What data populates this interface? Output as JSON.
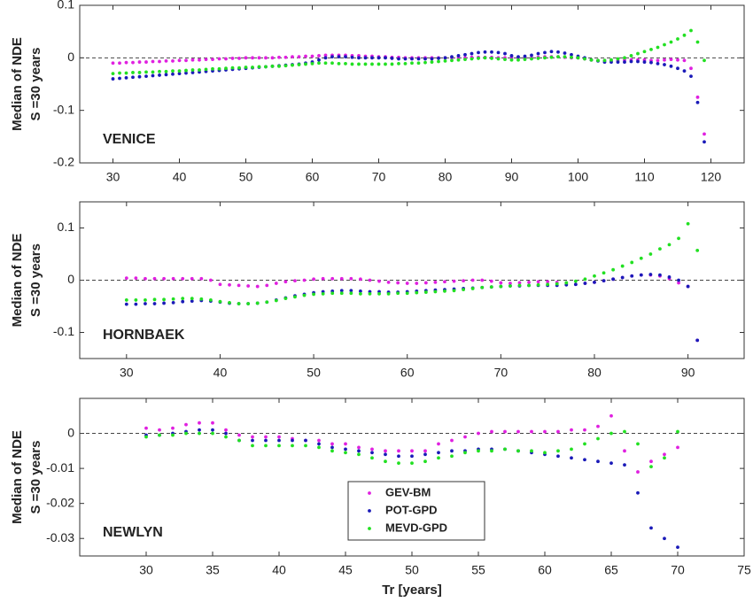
{
  "chart_data": [
    {
      "type": "scatter",
      "ylabel": [
        "Median of NDE",
        "S =30 years"
      ],
      "annotation": "VENICE",
      "hline": 0,
      "xlim": [
        25,
        125
      ],
      "xticks": [
        30,
        40,
        50,
        60,
        70,
        80,
        90,
        100,
        110,
        120
      ],
      "ylim": [
        -0.2,
        0.1
      ],
      "yticks": [
        -0.2,
        -0.1,
        0,
        0.1
      ],
      "x": [
        30,
        31,
        32,
        33,
        34,
        35,
        36,
        37,
        38,
        39,
        40,
        41,
        42,
        43,
        44,
        45,
        46,
        47,
        48,
        49,
        50,
        51,
        52,
        53,
        54,
        55,
        56,
        57,
        58,
        59,
        60,
        61,
        62,
        63,
        64,
        65,
        66,
        67,
        68,
        69,
        70,
        71,
        72,
        73,
        74,
        75,
        76,
        77,
        78,
        79,
        80,
        81,
        82,
        83,
        84,
        85,
        86,
        87,
        88,
        89,
        90,
        91,
        92,
        93,
        94,
        95,
        96,
        97,
        98,
        99,
        100,
        101,
        102,
        103,
        104,
        105,
        106,
        107,
        108,
        109,
        110,
        111,
        112,
        113,
        114,
        115,
        116,
        117,
        118,
        119
      ],
      "series": [
        {
          "color": "#e020e0",
          "values": [
            -0.01,
            -0.01,
            -0.009,
            -0.009,
            -0.008,
            -0.008,
            -0.007,
            -0.007,
            -0.006,
            -0.006,
            -0.005,
            -0.005,
            -0.004,
            -0.004,
            -0.003,
            -0.003,
            -0.002,
            -0.002,
            -0.001,
            -0.001,
            0,
            0,
            0,
            0,
            0,
            0.001,
            0.001,
            0.002,
            0.002,
            0.003,
            0.003,
            0.004,
            0.005,
            0.005,
            0.005,
            0.005,
            0.004,
            0.004,
            0.003,
            0.003,
            0.002,
            0.002,
            0.001,
            0.001,
            0,
            0,
            0,
            0,
            0,
            0,
            0,
            0,
            0,
            0,
            0.001,
            0.001,
            0.001,
            0.001,
            0,
            0,
            0,
            0,
            0,
            0,
            0.001,
            0.002,
            0.002,
            0.002,
            0.001,
            0,
            0,
            -0.002,
            -0.004,
            -0.005,
            -0.005,
            -0.005,
            -0.005,
            -0.004,
            -0.004,
            -0.004,
            -0.004,
            -0.005,
            -0.005,
            -0.004,
            -0.003,
            -0.004,
            -0.005,
            -0.02,
            -0.075,
            -0.145
          ]
        },
        {
          "color": "#1a1ab8",
          "values": [
            -0.04,
            -0.039,
            -0.038,
            -0.037,
            -0.036,
            -0.035,
            -0.034,
            -0.033,
            -0.032,
            -0.031,
            -0.03,
            -0.029,
            -0.028,
            -0.027,
            -0.026,
            -0.025,
            -0.024,
            -0.023,
            -0.022,
            -0.021,
            -0.02,
            -0.019,
            -0.018,
            -0.017,
            -0.016,
            -0.015,
            -0.014,
            -0.013,
            -0.012,
            -0.01,
            -0.008,
            -0.004,
            0,
            0.002,
            0.002,
            0.002,
            0.001,
            0,
            0,
            0,
            0,
            0,
            -0.001,
            -0.002,
            -0.002,
            -0.002,
            -0.002,
            -0.002,
            -0.002,
            -0.001,
            0,
            0.002,
            0.004,
            0.006,
            0.008,
            0.01,
            0.011,
            0.011,
            0.01,
            0.008,
            0.004,
            0.002,
            0.003,
            0.005,
            0.008,
            0.01,
            0.012,
            0.011,
            0.009,
            0.006,
            0.003,
            0,
            -0.004,
            -0.006,
            -0.008,
            -0.008,
            -0.008,
            -0.008,
            -0.007,
            -0.007,
            -0.008,
            -0.009,
            -0.011,
            -0.013,
            -0.016,
            -0.02,
            -0.025,
            -0.035,
            -0.085,
            -0.16
          ]
        },
        {
          "color": "#22e022",
          "values": [
            -0.03,
            -0.029,
            -0.029,
            -0.028,
            -0.028,
            -0.027,
            -0.027,
            -0.026,
            -0.026,
            -0.025,
            -0.025,
            -0.024,
            -0.023,
            -0.023,
            -0.022,
            -0.021,
            -0.021,
            -0.02,
            -0.019,
            -0.019,
            -0.018,
            -0.018,
            -0.017,
            -0.017,
            -0.016,
            -0.016,
            -0.015,
            -0.014,
            -0.013,
            -0.012,
            -0.011,
            -0.01,
            -0.01,
            -0.01,
            -0.011,
            -0.011,
            -0.012,
            -0.012,
            -0.012,
            -0.012,
            -0.012,
            -0.012,
            -0.012,
            -0.011,
            -0.011,
            -0.01,
            -0.01,
            -0.009,
            -0.008,
            -0.007,
            -0.006,
            -0.005,
            -0.004,
            -0.003,
            -0.002,
            -0.001,
            0,
            -0.001,
            -0.002,
            -0.003,
            -0.004,
            -0.004,
            -0.003,
            -0.002,
            -0.001,
            0,
            0.001,
            0.002,
            0.002,
            0.001,
            0,
            -0.002,
            -0.004,
            -0.005,
            -0.005,
            -0.004,
            -0.002,
            0,
            0.004,
            0.008,
            0.012,
            0.016,
            0.02,
            0.025,
            0.03,
            0.036,
            0.043,
            0.052,
            0.03,
            -0.005
          ]
        }
      ]
    },
    {
      "type": "scatter",
      "ylabel": [
        "Median of NDE",
        "S =30 years"
      ],
      "annotation": "HORNBAEK",
      "hline": 0,
      "xlim": [
        25,
        96
      ],
      "xticks": [
        30,
        40,
        50,
        60,
        70,
        80,
        90
      ],
      "ylim": [
        -0.15,
        0.15
      ],
      "yticks": [
        -0.1,
        0,
        0.1
      ],
      "x": [
        30,
        31,
        32,
        33,
        34,
        35,
        36,
        37,
        38,
        39,
        40,
        41,
        42,
        43,
        44,
        45,
        46,
        47,
        48,
        49,
        50,
        51,
        52,
        53,
        54,
        55,
        56,
        57,
        58,
        59,
        60,
        61,
        62,
        63,
        64,
        65,
        66,
        67,
        68,
        69,
        70,
        71,
        72,
        73,
        74,
        75,
        76,
        77,
        78,
        79,
        80,
        81,
        82,
        83,
        84,
        85,
        86,
        87,
        88,
        89,
        90,
        91
      ],
      "series": [
        {
          "color": "#e020e0",
          "values": [
            0.004,
            0.004,
            0.003,
            0.003,
            0.003,
            0.003,
            0.003,
            0.003,
            0.003,
            0,
            -0.008,
            -0.009,
            -0.01,
            -0.011,
            -0.012,
            -0.01,
            -0.006,
            -0.003,
            -0.001,
            0,
            0.002,
            0.003,
            0.003,
            0.003,
            0.003,
            0.002,
            0,
            -0.002,
            -0.004,
            -0.005,
            -0.006,
            -0.006,
            -0.005,
            -0.004,
            -0.003,
            -0.002,
            -0.001,
            0,
            0,
            -0.002,
            -0.005,
            -0.006,
            -0.005,
            -0.004,
            -0.003,
            -0.003,
            -0.004,
            -0.006,
            -0.008,
            -0.006,
            -0.004,
            -0.001,
            0.002,
            0.005,
            0.008,
            0.01,
            0.01,
            0.008,
            0.003,
            -0.005,
            -0.012,
            -0.115
          ]
        },
        {
          "color": "#1a1ab8",
          "values": [
            -0.046,
            -0.046,
            -0.045,
            -0.045,
            -0.044,
            -0.043,
            -0.041,
            -0.04,
            -0.039,
            -0.04,
            -0.042,
            -0.044,
            -0.045,
            -0.045,
            -0.044,
            -0.042,
            -0.038,
            -0.034,
            -0.03,
            -0.027,
            -0.024,
            -0.022,
            -0.021,
            -0.02,
            -0.02,
            -0.021,
            -0.022,
            -0.022,
            -0.023,
            -0.023,
            -0.022,
            -0.021,
            -0.02,
            -0.019,
            -0.018,
            -0.017,
            -0.016,
            -0.015,
            -0.014,
            -0.013,
            -0.012,
            -0.011,
            -0.011,
            -0.01,
            -0.01,
            -0.01,
            -0.01,
            -0.009,
            -0.008,
            -0.006,
            -0.004,
            -0.001,
            0.002,
            0.005,
            0.008,
            0.01,
            0.011,
            0.01,
            0.006,
            0,
            -0.012,
            -0.115
          ]
        },
        {
          "color": "#22e022",
          "values": [
            -0.038,
            -0.038,
            -0.038,
            -0.037,
            -0.037,
            -0.036,
            -0.035,
            -0.035,
            -0.036,
            -0.038,
            -0.041,
            -0.043,
            -0.045,
            -0.045,
            -0.044,
            -0.042,
            -0.039,
            -0.035,
            -0.032,
            -0.029,
            -0.027,
            -0.026,
            -0.025,
            -0.025,
            -0.025,
            -0.026,
            -0.026,
            -0.026,
            -0.026,
            -0.025,
            -0.025,
            -0.024,
            -0.023,
            -0.022,
            -0.021,
            -0.02,
            -0.018,
            -0.016,
            -0.014,
            -0.013,
            -0.012,
            -0.011,
            -0.01,
            -0.01,
            -0.009,
            -0.008,
            -0.007,
            -0.005,
            -0.002,
            0.002,
            0.008,
            0.014,
            0.02,
            0.027,
            0.034,
            0.042,
            0.05,
            0.06,
            0.068,
            0.08,
            0.108,
            0.057
          ]
        }
      ]
    },
    {
      "type": "scatter",
      "ylabel": [
        "Median of NDE",
        "S =30 years"
      ],
      "annotation": "NEWLYN",
      "hline": 0,
      "xlabel": "Tr [years]",
      "legend": "lower center",
      "xlim": [
        25,
        75
      ],
      "xticks": [
        30,
        35,
        40,
        45,
        50,
        55,
        60,
        65,
        70,
        75
      ],
      "ylim": [
        -0.035,
        0.01
      ],
      "yticks": [
        -0.03,
        -0.02,
        -0.01,
        0
      ],
      "x": [
        30,
        31,
        32,
        33,
        34,
        35,
        36,
        37,
        38,
        39,
        40,
        41,
        42,
        43,
        44,
        45,
        46,
        47,
        48,
        49,
        50,
        51,
        52,
        53,
        54,
        55,
        56,
        57,
        58,
        59,
        60,
        61,
        62,
        63,
        64,
        65,
        66,
        67,
        68,
        69,
        70
      ],
      "series": [
        {
          "name": "GEV-BM",
          "color": "#e020e0",
          "values": [
            0.0015,
            0.001,
            0.0015,
            0.0025,
            0.003,
            0.003,
            0.001,
            -0.0005,
            -0.001,
            -0.001,
            -0.001,
            -0.0015,
            -0.002,
            -0.002,
            -0.003,
            -0.003,
            -0.004,
            -0.0045,
            -0.005,
            -0.005,
            -0.005,
            -0.005,
            -0.003,
            -0.002,
            -0.001,
            0,
            0.0005,
            0.0005,
            0.0005,
            0.0005,
            0.0005,
            0.0005,
            0.001,
            0.001,
            0.002,
            0.005,
            -0.005,
            -0.011,
            -0.008,
            -0.006,
            -0.004
          ]
        },
        {
          "name": "POT-GPD",
          "color": "#1a1ab8",
          "values": [
            -0.0005,
            -0.0005,
            0,
            0.0005,
            0.001,
            0.001,
            0,
            -0.002,
            -0.002,
            -0.002,
            -0.002,
            -0.002,
            -0.002,
            -0.003,
            -0.004,
            -0.0045,
            -0.005,
            -0.0055,
            -0.006,
            -0.0065,
            -0.0065,
            -0.006,
            -0.0055,
            -0.005,
            -0.005,
            -0.0045,
            -0.0045,
            -0.0045,
            -0.005,
            -0.0055,
            -0.006,
            -0.0065,
            -0.007,
            -0.0075,
            -0.008,
            -0.0085,
            -0.009,
            -0.017,
            -0.027,
            -0.03,
            -0.0325
          ]
        },
        {
          "name": "MEVD-GPD",
          "color": "#22e022",
          "values": [
            -0.001,
            -0.0005,
            -0.0005,
            0,
            0,
            0,
            -0.001,
            -0.002,
            -0.0035,
            -0.0035,
            -0.0035,
            -0.0035,
            -0.0035,
            -0.004,
            -0.005,
            -0.0055,
            -0.006,
            -0.007,
            -0.008,
            -0.0085,
            -0.0085,
            -0.008,
            -0.007,
            -0.0065,
            -0.0055,
            -0.005,
            -0.005,
            -0.0045,
            -0.005,
            -0.005,
            -0.0055,
            -0.005,
            -0.0045,
            -0.003,
            -0.0015,
            0,
            0.0005,
            -0.003,
            -0.0095,
            -0.007,
            0.0005
          ]
        }
      ]
    }
  ]
}
